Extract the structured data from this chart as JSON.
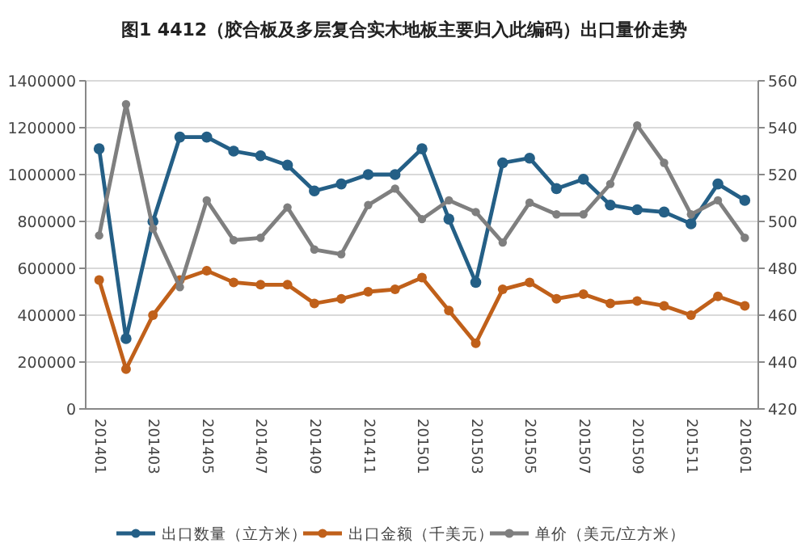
{
  "chart_data": {
    "type": "line",
    "title": "图1 4412（胶合板及多层复合实木地板主要归入此编码）出口量价走势",
    "categories": [
      "201401",
      null,
      "201403",
      null,
      "201405",
      null,
      "201407",
      null,
      "201409",
      null,
      "201411",
      null,
      "201501",
      null,
      "201503",
      null,
      "201505",
      null,
      "201507",
      null,
      "201509",
      null,
      "201511",
      null,
      "201601"
    ],
    "series": [
      {
        "name": "出口数量（立方米）",
        "color": "#245f86",
        "values": [
          1110000,
          300000,
          800000,
          1160000,
          1160000,
          1100000,
          1080000,
          1040000,
          930000,
          960000,
          1000000,
          1000000,
          1110000,
          810000,
          540000,
          1050000,
          1070000,
          940000,
          980000,
          870000,
          850000,
          840000,
          790000,
          960000,
          890000
        ]
      },
      {
        "name": "出口金额（千美元）",
        "color": "#c0601a",
        "values": [
          550000,
          170000,
          400000,
          550000,
          590000,
          540000,
          530000,
          530000,
          450000,
          470000,
          500000,
          510000,
          560000,
          420000,
          280000,
          510000,
          540000,
          470000,
          490000,
          450000,
          460000,
          440000,
          400000,
          480000,
          440000
        ]
      },
      {
        "name": "单价（美元/立方米）",
        "color": "#7f7f7f",
        "axis": "y2",
        "values": [
          494,
          550,
          497,
          472,
          509,
          492,
          493,
          506,
          488,
          486,
          507,
          514,
          501,
          509,
          504,
          491,
          508,
          503,
          503,
          516,
          541,
          525,
          503,
          509,
          493
        ]
      }
    ],
    "ylim": [
      0,
      1400000
    ],
    "yticks": [
      0,
      200000,
      400000,
      600000,
      800000,
      1000000,
      1200000,
      1400000
    ],
    "y2lim": [
      420,
      560
    ],
    "y2ticks": [
      420,
      440,
      460,
      480,
      500,
      520,
      540,
      560
    ],
    "grid": "y",
    "legend": "bottom",
    "marker": "circle",
    "line_style": "solid"
  }
}
